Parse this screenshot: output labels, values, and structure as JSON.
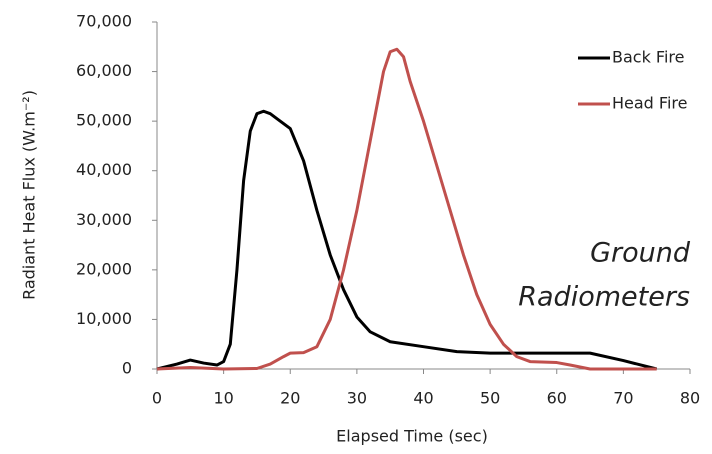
{
  "chart_data": {
    "type": "line",
    "x_label": "Elapsed Time (sec)",
    "y_label": "Radiant Heat Flux (W.m⁻²)",
    "annotation": [
      "Ground",
      "Radiometers"
    ],
    "xlim": [
      0,
      80
    ],
    "xticks": [
      0,
      10,
      20,
      30,
      40,
      50,
      60,
      70,
      80
    ],
    "ylim": [
      0,
      70000
    ],
    "yticks": [
      0,
      {
        "value": 10000,
        "label": "10,000"
      },
      {
        "value": 20000,
        "label": "20,000"
      },
      {
        "value": 30000,
        "label": "30,000"
      },
      {
        "value": 40000,
        "label": "40,000"
      },
      {
        "value": 50000,
        "label": "50,000"
      },
      {
        "value": 60000,
        "label": "60,000"
      },
      {
        "value": 70000,
        "label": "70,000"
      }
    ],
    "grid": false,
    "legend": "upper right",
    "series": [
      {
        "name": "Back Fire",
        "color": "#000000",
        "x": [
          0,
          3,
          5,
          7,
          9,
          10,
          11,
          12,
          13,
          14,
          15,
          16,
          17,
          18,
          20,
          22,
          24,
          26,
          28,
          30,
          32,
          35,
          40,
          45,
          50,
          55,
          60,
          65,
          70,
          75
        ],
        "values": [
          0,
          1000,
          1800,
          1200,
          800,
          1500,
          5000,
          20000,
          38000,
          48000,
          51500,
          52000,
          51500,
          50500,
          48500,
          42000,
          32000,
          23000,
          16000,
          10500,
          7500,
          5500,
          4500,
          3500,
          3200,
          3200,
          3200,
          3200,
          1700,
          0
        ]
      },
      {
        "name": "Head Fire",
        "color": "#c0504d",
        "x": [
          0,
          5,
          10,
          15,
          17,
          19,
          20,
          22,
          24,
          26,
          28,
          30,
          32,
          34,
          35,
          36,
          37,
          38,
          40,
          42,
          44,
          46,
          48,
          50,
          52,
          54,
          56,
          60,
          62,
          65,
          75
        ],
        "values": [
          0,
          300,
          0,
          100,
          1000,
          2500,
          3200,
          3300,
          4500,
          10000,
          20000,
          32000,
          46000,
          60000,
          64000,
          64500,
          63000,
          58000,
          50000,
          41000,
          32000,
          23000,
          15000,
          9000,
          5000,
          2500,
          1500,
          1300,
          800,
          0,
          0
        ]
      }
    ]
  }
}
